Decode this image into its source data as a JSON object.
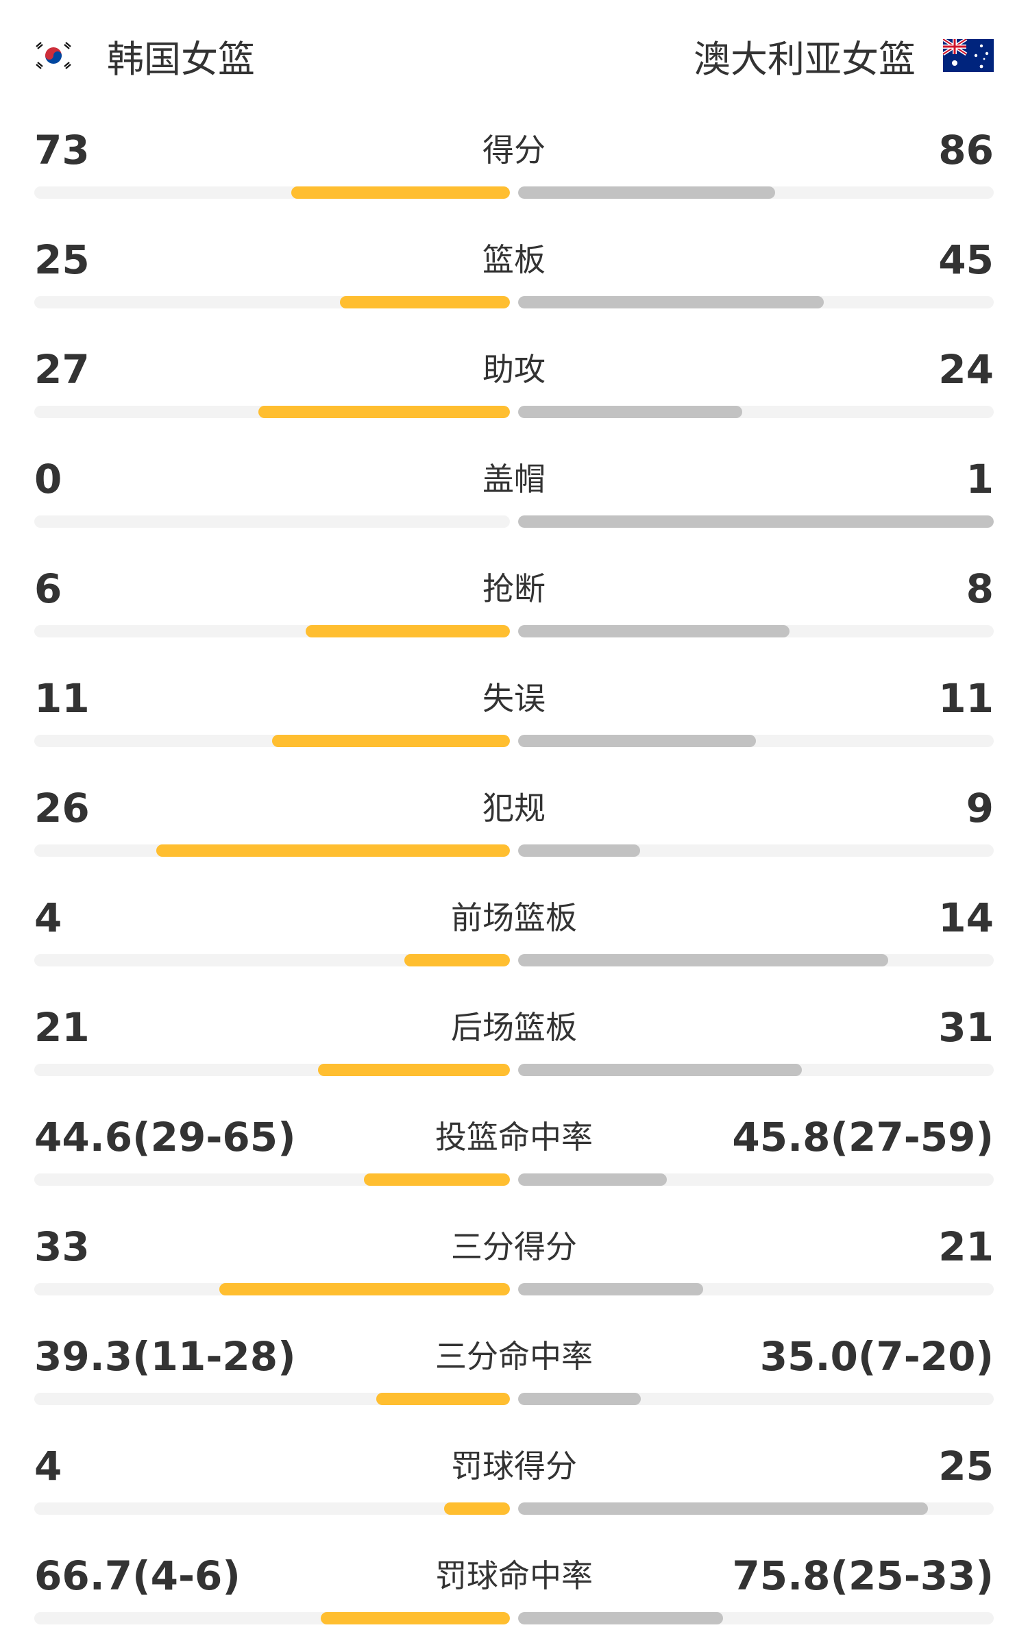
{
  "header": {
    "home_team": "韩国女篮",
    "away_team": "澳大利亚女篮",
    "home_flag_icon": "south-korea-flag-icon",
    "away_flag_icon": "australia-flag-icon"
  },
  "colors": {
    "home_bar": "#FFBE30",
    "away_bar": "#C2C2C2",
    "track": "#F3F3F3",
    "text": "#333333"
  },
  "stats": [
    {
      "label": "得分",
      "home": "73",
      "away": "86",
      "home_fill": 0.459,
      "away_fill": 0.541
    },
    {
      "label": "篮板",
      "home": "25",
      "away": "45",
      "home_fill": 0.357,
      "away_fill": 0.643
    },
    {
      "label": "助攻",
      "home": "27",
      "away": "24",
      "home_fill": 0.529,
      "away_fill": 0.471
    },
    {
      "label": "盖帽",
      "home": "0",
      "away": "1",
      "home_fill": 0,
      "away_fill": 1
    },
    {
      "label": "抢断",
      "home": "6",
      "away": "8",
      "home_fill": 0.429,
      "away_fill": 0.571
    },
    {
      "label": "失误",
      "home": "11",
      "away": "11",
      "home_fill": 0.5,
      "away_fill": 0.5
    },
    {
      "label": "犯规",
      "home": "26",
      "away": "9",
      "home_fill": 0.743,
      "away_fill": 0.257
    },
    {
      "label": "前场篮板",
      "home": "4",
      "away": "14",
      "home_fill": 0.222,
      "away_fill": 0.778
    },
    {
      "label": "后场篮板",
      "home": "21",
      "away": "31",
      "home_fill": 0.404,
      "away_fill": 0.596
    },
    {
      "label": "投篮命中率",
      "home": "44.6(29-65)",
      "away": "45.8(27-59)",
      "home_fill": 0.307,
      "away_fill": 0.313
    },
    {
      "label": "三分得分",
      "home": "33",
      "away": "21",
      "home_fill": 0.611,
      "away_fill": 0.389
    },
    {
      "label": "三分命中率",
      "home": "39.3(11-28)",
      "away": "35.0(7-20)",
      "home_fill": 0.281,
      "away_fill": 0.258
    },
    {
      "label": "罚球得分",
      "home": "4",
      "away": "25",
      "home_fill": 0.138,
      "away_fill": 0.862
    },
    {
      "label": "罚球命中率",
      "home": "66.7(4-6)",
      "away": "75.8(25-33)",
      "home_fill": 0.398,
      "away_fill": 0.431
    }
  ]
}
